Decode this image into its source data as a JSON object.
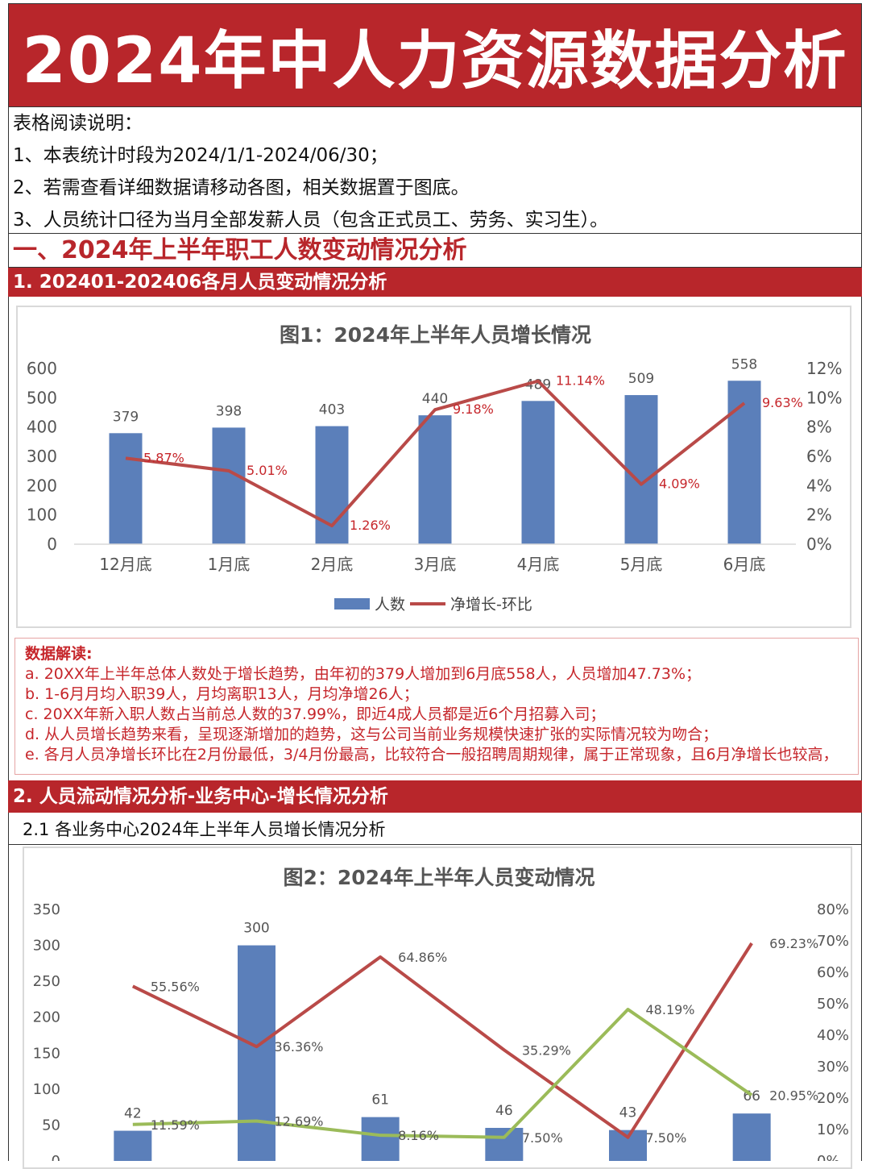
{
  "page_title": "2024年中人力资源数据分析",
  "notes": [
    "表格阅读说明：",
    "1、本表统计时段为2024/1/1-2024/06/30；",
    "2、若需查看详细数据请移动各图，相关数据置于图底。",
    "3、人员统计口径为当月全部发薪人员（包含正式员工、劳务、实习生）。"
  ],
  "section1_title": "一、2024年上半年职工人数变动情况分析",
  "sub1_title": "1. 202401-202406各月人员变动情况分析",
  "interpretation": {
    "heading": "数据解读:",
    "lines": [
      "a. 20XX年上半年总体人数处于增长趋势，由年初的379人增加到6月底558人，人员增加47.73%；",
      "b. 1-6月月均入职39人，月均离职13人，月均净增26人；",
      "c. 20XX年新入职人数占当前总人数的37.99%，即近4成人员都是近6个月招募入司；",
      "d. 从人员增长趋势来看，呈现逐渐增加的趋势，这与公司当前业务规模快速扩张的实际情况较为吻合；",
      "e. 各月人员净增长环比在2月份最低，3/4月份最高，比较符合一般招聘周期规律，属于正常现象，且6月净增长也较高，"
    ]
  },
  "sub2_title": "2. 人员流动情况分析-业务中心-增长情况分析",
  "sub2_1_title": "2.1 各业务中心2024年上半年人员增长情况分析",
  "chart_data": [
    {
      "type": "bar",
      "title": "图1：2024年上半年人员增长情况",
      "categories": [
        "12月底",
        "1月底",
        "2月底",
        "3月底",
        "4月底",
        "5月底",
        "6月底"
      ],
      "series": [
        {
          "name": "人数",
          "type": "bar",
          "axis": "left",
          "values": [
            379,
            398,
            403,
            440,
            489,
            509,
            558
          ]
        },
        {
          "name": "净增长-环比",
          "type": "line",
          "axis": "right",
          "values": [
            5.87,
            5.01,
            1.26,
            9.18,
            11.14,
            4.09,
            9.63
          ],
          "labels": [
            "5.87%",
            "5.01%",
            "1.26%",
            "9.18%",
            "11.14%",
            "4.09%",
            "9.63%"
          ]
        }
      ],
      "bar_labels": [
        "379",
        "398",
        "403",
        "440",
        "489",
        "509",
        "558"
      ],
      "y_left_ticks": [
        "600",
        "500",
        "400",
        "300",
        "200",
        "100",
        "0"
      ],
      "y_right_ticks": [
        "12%",
        "10%",
        "8%",
        "6%",
        "4%",
        "2%",
        "0%"
      ],
      "ylim": [
        0,
        600
      ],
      "y2lim": [
        0,
        12
      ],
      "legend_position": "bottom",
      "grid": false,
      "colors": {
        "bar": "#5b7fba",
        "line": "#b94a48",
        "line_label": "#c6262b"
      }
    },
    {
      "type": "bar",
      "title": "图2：2024年上半年人员变动情况",
      "categories": [
        "",
        "",
        "",
        "",
        "",
        ""
      ],
      "series": [
        {
          "type": "bar",
          "axis": "left",
          "values": [
            42,
            300,
            61,
            46,
            43,
            66
          ]
        },
        {
          "type": "line",
          "axis": "right",
          "values": [
            55.56,
            36.36,
            64.86,
            35.29,
            7.5,
            69.23
          ],
          "labels": [
            "55.56%",
            "36.36%",
            "64.86%",
            "35.29%",
            "7.50%",
            "69.23%"
          ]
        },
        {
          "type": "line",
          "axis": "right",
          "values": [
            11.59,
            12.69,
            8.16,
            7.5,
            48.19,
            20.95
          ],
          "labels": [
            "11.59%",
            "12.69%",
            "8.16%",
            "7.50%",
            "48.19%",
            "20.95%"
          ]
        }
      ],
      "bar_labels": [
        "42",
        "300",
        "61",
        "46",
        "43",
        "66"
      ],
      "y_left_ticks": [
        "350",
        "300",
        "250",
        "200",
        "150",
        "100",
        "50",
        "0"
      ],
      "y_right_ticks": [
        "80%",
        "70%",
        "60%",
        "50%",
        "40%",
        "30%",
        "20%",
        "10%",
        "0%"
      ],
      "ylim": [
        0,
        350
      ],
      "y2lim": [
        0,
        80
      ],
      "grid": false,
      "colors": {
        "bar": "#5b7fba",
        "line1": "#b94a48",
        "line2": "#9bbb59"
      }
    }
  ]
}
